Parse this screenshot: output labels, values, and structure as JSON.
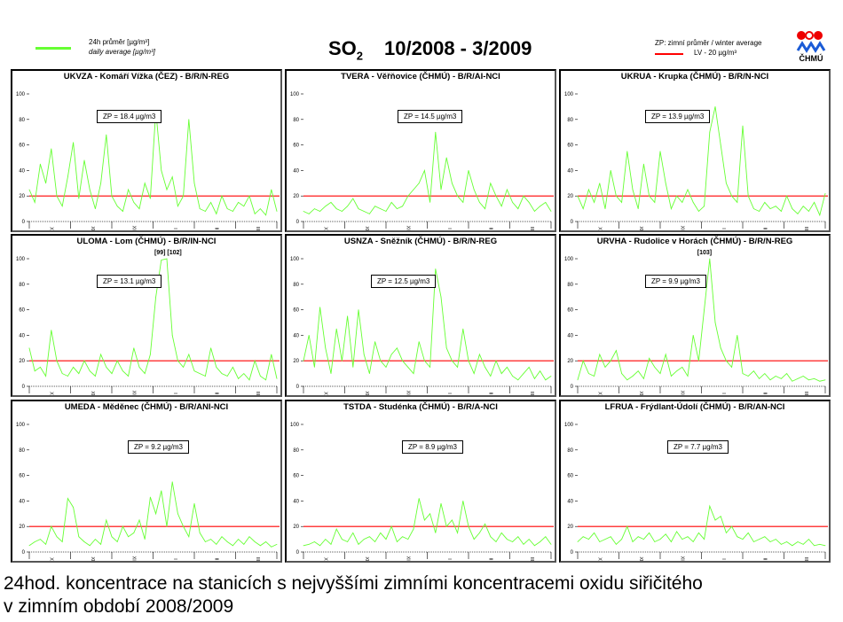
{
  "header": {
    "legend_daily_cz": "24h průměr [µg/m³]",
    "legend_daily_en": "daily average [µg/m³]",
    "title_pollutant": "SO",
    "title_sub": "2",
    "title_period": "10/2008 - 3/2009",
    "legend_zp": "ZP: zimní průměr /  winter average",
    "legend_lv": "LV  - 20 µg/m³",
    "logo_text": "ČHMÚ"
  },
  "colors": {
    "series": "#66ff33",
    "limit": "#ff0000"
  },
  "caption": {
    "line1": "24hod. koncentrace na stanicích s nejvyššími zimními koncentracemi oxidu siřičitého",
    "line2": "v zimním období 2008/2009"
  },
  "chart_data": [
    {
      "type": "line",
      "title": "UKVZA - Komáří Vížka (ČEZ) - B/R/N-REG",
      "zp": "ZP = 18.4 µg/m3",
      "note": "",
      "ylim": [
        0,
        100
      ],
      "yticks": [
        0,
        20,
        40,
        60,
        80,
        100
      ],
      "months": [
        "X",
        "XI",
        "XII",
        "I",
        "II",
        "III"
      ],
      "limit": 20,
      "values": [
        25,
        15,
        45,
        30,
        57,
        20,
        12,
        35,
        62,
        18,
        48,
        25,
        10,
        30,
        68,
        20,
        12,
        8,
        25,
        15,
        10,
        30,
        18,
        87,
        40,
        25,
        35,
        12,
        20,
        80,
        30,
        10,
        8,
        15,
        6,
        20,
        10,
        8,
        15,
        12,
        20,
        6,
        10,
        5,
        25,
        8
      ]
    },
    {
      "type": "line",
      "title": "TVERA -  Věřňovice (ČHMÚ) - B/R/AI-NCI",
      "zp": "ZP = 14.5 µg/m3",
      "note": "",
      "ylim": [
        0,
        100
      ],
      "yticks": [
        0,
        20,
        40,
        60,
        80,
        100
      ],
      "months": [
        "X",
        "XI",
        "XII",
        "I",
        "II",
        "III"
      ],
      "limit": 20,
      "values": [
        8,
        6,
        10,
        8,
        12,
        15,
        10,
        8,
        12,
        18,
        10,
        8,
        6,
        12,
        10,
        8,
        15,
        10,
        12,
        20,
        25,
        30,
        40,
        15,
        70,
        25,
        50,
        30,
        20,
        15,
        40,
        25,
        15,
        10,
        30,
        20,
        12,
        25,
        15,
        10,
        20,
        15,
        8,
        12,
        15,
        8
      ]
    },
    {
      "type": "line",
      "title": "UKRUA - Krupka (ČHMÚ) - B/R/N-NCI",
      "zp": "ZP = 13.9 µg/m3",
      "note": "",
      "ylim": [
        0,
        100
      ],
      "yticks": [
        0,
        20,
        40,
        60,
        80,
        100
      ],
      "months": [
        "X",
        "XI",
        "XII",
        "I",
        "II",
        "III"
      ],
      "limit": 20,
      "values": [
        20,
        10,
        25,
        15,
        30,
        10,
        40,
        20,
        15,
        55,
        25,
        10,
        45,
        20,
        15,
        55,
        30,
        10,
        20,
        15,
        25,
        15,
        8,
        12,
        70,
        90,
        60,
        30,
        20,
        15,
        75,
        20,
        10,
        8,
        15,
        10,
        12,
        8,
        20,
        10,
        6,
        12,
        8,
        15,
        5,
        22
      ]
    },
    {
      "type": "line",
      "title": "ULOMA - Lom (ČHMÚ) - B/R/IN-NCI",
      "zp": "ZP = 13.1 µg/m3",
      "note": "[99] [102]",
      "ylim": [
        0,
        100
      ],
      "yticks": [
        0,
        20,
        40,
        60,
        80,
        100
      ],
      "months": [
        "X",
        "XI",
        "XII",
        "I",
        "II",
        "III"
      ],
      "limit": 20,
      "values": [
        30,
        12,
        15,
        8,
        44,
        20,
        10,
        8,
        15,
        10,
        20,
        12,
        8,
        25,
        15,
        10,
        20,
        12,
        8,
        30,
        15,
        10,
        25,
        70,
        99,
        102,
        40,
        20,
        15,
        25,
        12,
        10,
        8,
        30,
        15,
        10,
        8,
        15,
        6,
        10,
        5,
        20,
        8,
        5,
        25,
        6
      ]
    },
    {
      "type": "line",
      "title": "USNZA - Sněžník (ČHMÚ) - B/R/N-REG",
      "zp": "ZP = 12.5 µg/m3",
      "note": "",
      "ylim": [
        0,
        100
      ],
      "yticks": [
        0,
        20,
        40,
        60,
        80,
        100
      ],
      "months": [
        "X",
        "XI",
        "XII",
        "I",
        "II",
        "III"
      ],
      "limit": 20,
      "values": [
        20,
        40,
        15,
        62,
        30,
        10,
        45,
        20,
        55,
        15,
        60,
        25,
        10,
        35,
        20,
        15,
        25,
        30,
        20,
        15,
        10,
        35,
        20,
        15,
        92,
        70,
        30,
        20,
        15,
        45,
        20,
        10,
        25,
        15,
        8,
        20,
        10,
        15,
        8,
        5,
        10,
        15,
        6,
        12,
        5,
        8
      ]
    },
    {
      "type": "line",
      "title": "URVHA - Rudolice v Horách (ČHMÚ) - B/R/N-REG",
      "zp": "ZP = 9.9 µg/m3",
      "note": "[103]",
      "ylim": [
        0,
        100
      ],
      "yticks": [
        0,
        20,
        40,
        60,
        80,
        100
      ],
      "months": [
        "X",
        "XI",
        "XII",
        "I",
        "II",
        "III"
      ],
      "limit": 20,
      "values": [
        5,
        20,
        10,
        8,
        25,
        15,
        20,
        28,
        10,
        5,
        8,
        12,
        6,
        22,
        15,
        10,
        25,
        8,
        12,
        15,
        8,
        40,
        20,
        60,
        103,
        50,
        30,
        20,
        15,
        40,
        10,
        8,
        12,
        6,
        10,
        5,
        8,
        6,
        10,
        4,
        6,
        8,
        5,
        6,
        4,
        5
      ]
    },
    {
      "type": "line",
      "title": "UMEDA - Měděnec (ČHMÚ) - B/R/ANI-NCI",
      "zp": "ZP = 9.2 µg/m3",
      "note": "",
      "ylim": [
        0,
        100
      ],
      "yticks": [
        0,
        20,
        40,
        60,
        80,
        100
      ],
      "months": [
        "X",
        "XI",
        "XII",
        "I",
        "II",
        "III"
      ],
      "limit": 20,
      "values": [
        5,
        8,
        10,
        6,
        20,
        12,
        8,
        42,
        35,
        12,
        8,
        5,
        10,
        6,
        25,
        12,
        8,
        20,
        12,
        15,
        25,
        10,
        43,
        30,
        48,
        20,
        55,
        30,
        20,
        12,
        38,
        15,
        8,
        10,
        6,
        12,
        8,
        5,
        10,
        6,
        12,
        8,
        5,
        8,
        4,
        6
      ]
    },
    {
      "type": "line",
      "title": "TSTDA - Studénka (ČHMÚ) - B/R/A-NCI",
      "zp": "ZP = 8.9 µg/m3",
      "note": "",
      "ylim": [
        0,
        100
      ],
      "yticks": [
        0,
        20,
        40,
        60,
        80,
        100
      ],
      "months": [
        "X",
        "XI",
        "XII",
        "I",
        "II",
        "III"
      ],
      "limit": 20,
      "values": [
        5,
        6,
        8,
        5,
        10,
        6,
        18,
        10,
        8,
        15,
        6,
        10,
        12,
        8,
        15,
        10,
        20,
        8,
        12,
        10,
        18,
        42,
        25,
        30,
        15,
        38,
        20,
        25,
        15,
        40,
        20,
        10,
        15,
        22,
        12,
        8,
        15,
        10,
        8,
        12,
        6,
        10,
        5,
        8,
        12,
        6
      ]
    },
    {
      "type": "line",
      "title": "LFRUA - Frýdlant-Údolí (ČHMÚ) - B/R/AN-NCI",
      "zp": "ZP = 7.7 µg/m3",
      "note": "",
      "ylim": [
        0,
        100
      ],
      "yticks": [
        0,
        20,
        40,
        60,
        80,
        100
      ],
      "months": [
        "X",
        "XI",
        "XII",
        "I",
        "II",
        "III"
      ],
      "limit": 20,
      "values": [
        8,
        12,
        10,
        15,
        8,
        10,
        12,
        6,
        10,
        20,
        8,
        12,
        10,
        15,
        8,
        10,
        14,
        8,
        16,
        10,
        12,
        8,
        15,
        10,
        36,
        25,
        28,
        15,
        20,
        12,
        10,
        15,
        8,
        10,
        12,
        8,
        10,
        6,
        8,
        5,
        8,
        6,
        10,
        5,
        6,
        5
      ]
    }
  ]
}
